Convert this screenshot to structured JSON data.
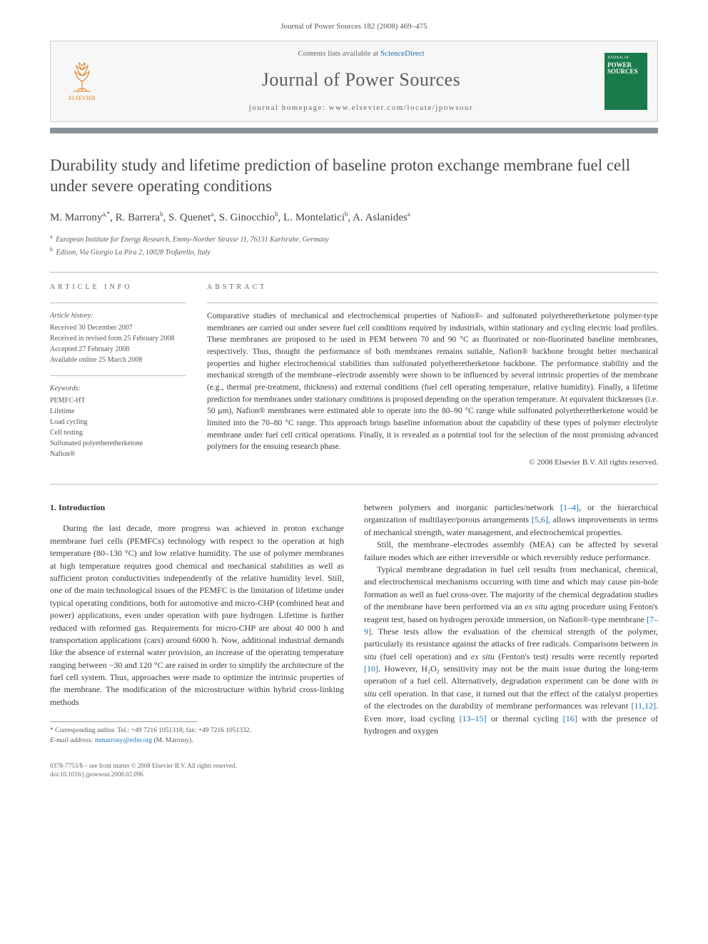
{
  "journal_ref": "Journal of Power Sources 182 (2008) 469–475",
  "header": {
    "publisher": "ELSEVIER",
    "contents_prefix": "Contents lists available at ",
    "contents_link": "ScienceDirect",
    "journal_title": "Journal of Power Sources",
    "homepage_label": "journal homepage: ",
    "homepage_url": "www.elsevier.com/locate/jpowsour",
    "cover_top": "JOURNAL OF",
    "cover_title": "POWER SOURCES"
  },
  "title": "Durability study and lifetime prediction of baseline proton exchange membrane fuel cell under severe operating conditions",
  "authors_html": "M. Marrony<sup>a,*</sup>, R. Barrera<sup>b</sup>, S. Quenet<sup>a</sup>, S. Ginocchio<sup>b</sup>, L. Montelatici<sup>b</sup>, A. Aslanides<sup>a</sup>",
  "affiliations": [
    {
      "sup": "a",
      "text": "European Institute for Energy Research, Emmy-Noether Strasse 11, 76131 Karlsruhe, Germany"
    },
    {
      "sup": "b",
      "text": "Edison, Via Giorgio La Pira 2, 10028 Trofarello, Italy"
    }
  ],
  "info": {
    "heading": "ARTICLE INFO",
    "history_label": "Article history:",
    "history": [
      "Received 30 December 2007",
      "Received in revised form 25 February 2008",
      "Accepted 27 February 2008",
      "Available online 25 March 2008"
    ],
    "keywords_label": "Keywords:",
    "keywords": [
      "PEMFC-HT",
      "Lifetime",
      "Load cycling",
      "Cell testing",
      "Sulfonated polyetheretherketone",
      "Nafion®"
    ]
  },
  "abstract": {
    "heading": "ABSTRACT",
    "text": "Comparative studies of mechanical and electrochemical properties of Nafion®- and sulfonated polyetheretherketone polymer-type membranes are carried out under severe fuel cell conditions required by industrials, within stationary and cycling electric load profiles. These membranes are proposed to be used in PEM between 70 and 90 °C as fluorinated or non-fluorinated baseline membranes, respectively. Thus, thought the performance of both membranes remains suitable, Nafion® backbone brought better mechanical properties and higher electrochemical stabilities than sulfonated polyetheretherketone backbone. The performance stability and the mechanical strength of the membrane–electrode assembly were shown to be influenced by several intrinsic properties of the membrane (e.g., thermal pre-treatment, thickness) and external conditions (fuel cell operating temperature, relative humidity). Finally, a lifetime prediction for membranes under stationary conditions is proposed depending on the operation temperature. At equivalent thicknesses (i.e. 50 μm), Nafion® membranes were estimated able to operate into the 80–90 °C range while sulfonated polyetheretherketone would be limited into the 70–80 °C range. This approach brings baseline information about the capability of these types of polymer electrolyte membrane under fuel cell critical operations. Finally, it is revealed as a potential tool for the selection of the most promising advanced polymers for the ensuing research phase.",
    "copyright": "© 2008 Elsevier B.V. All rights reserved."
  },
  "section1": {
    "heading": "1.  Introduction",
    "col_left": "During the last decade, more progress was achieved in proton exchange membrane fuel cells (PEMFCs) technology with respect to the operation at high temperature (80–130 °C) and low relative humidity. The use of polymer membranes at high temperature requires good chemical and mechanical stabilities as well as sufficient proton conductivities independently of the relative humidity level. Still, one of the main technological issues of the PEMFC is the limitation of lifetime under typical operating conditions, both for automotive and micro-CHP (combined heat and power) applications, even under operation with pure hydrogen. Lifetime is further reduced with reformed gas. Requirements for micro-CHP are about 40 000 h and transportation applications (cars) around 6000 h. Now, additional industrial demands like the absence of external water provision, an increase of the operating temperature ranging between −30 and 120 °C are raised in order to simplify the architecture of the fuel cell system. Thus, approaches were made to optimize the intrinsic properties of the membrane. The modification of the microstructure within hybrid cross-linking methods",
    "col_right_p1_pre": "between polymers and inorganic particles/network ",
    "ref1": "[1–4]",
    "col_right_p1_mid": ", or the hierarchical organization of multilayer/porous arrangements ",
    "ref2": "[5,6]",
    "col_right_p1_post": ", allows improvements in terms of mechanical strength, water management, and electrochemical properties.",
    "col_right_p2": "Still, the membrane–electrodes assembly (MEA) can be affected by several failure modes which are either irreversible or which reversibly reduce performance.",
    "col_right_p3_a": "Typical membrane degradation in fuel cell results from mechanical, chemical, and electrochemical mechanisms occurring with time and which may cause pin-hole formation as well as fuel cross-over. The majority of the chemical degradation studies of the membrane have been performed via an ",
    "col_right_p3_b": "ex situ",
    "col_right_p3_c": " aging procedure using Fenton's reagent test, based on hydrogen peroxide immersion, on Nafion®-type membrane ",
    "ref3": "[7–9]",
    "col_right_p3_d": ". These tests allow the evaluation of the chemical strength of the polymer, particularly its resistance against the attacks of free radicals. Comparisons between ",
    "col_right_p3_e": "in situ",
    "col_right_p3_f": " (fuel cell operation) and ",
    "col_right_p3_g": "ex situ",
    "col_right_p3_h": " (Fenton's test) results were recently reported ",
    "ref4": "[10]",
    "col_right_p3_i": ". However, H₂O₂ sensitivity may not be the main issue during the long-term operation of a fuel cell. Alternatively, degradation experiment can be done with ",
    "col_right_p3_j": "in situ",
    "col_right_p3_k": " cell operation. In that case, it turned out that the effect of the catalyst properties of the electrodes on the durability of membrane performances was relevant ",
    "ref5": "[11,12]",
    "col_right_p3_l": ". Even more, load cycling ",
    "ref6": "[13–15]",
    "col_right_p3_m": " or thermal cycling ",
    "ref7": "[16]",
    "col_right_p3_n": " with the presence of hydrogen and oxygen"
  },
  "footnotes": {
    "corr": "* Corresponding author. Tel.: +49 7216 1051318; fax: +49 7216 1051332.",
    "email_label": "E-mail address: ",
    "email": "mmarrony@eifer.org",
    "email_tail": " (M. Marrony)."
  },
  "footer": {
    "issn": "0378-7753/$ – see front matter © 2008 Elsevier B.V. All rights reserved.",
    "doi": "doi:10.1016/j.jpowsour.2008.02.096"
  },
  "colors": {
    "accent_bar": "#8a9299",
    "link": "#1b6fb0",
    "publisher": "#e67817",
    "cover": "#1a7a4a"
  }
}
